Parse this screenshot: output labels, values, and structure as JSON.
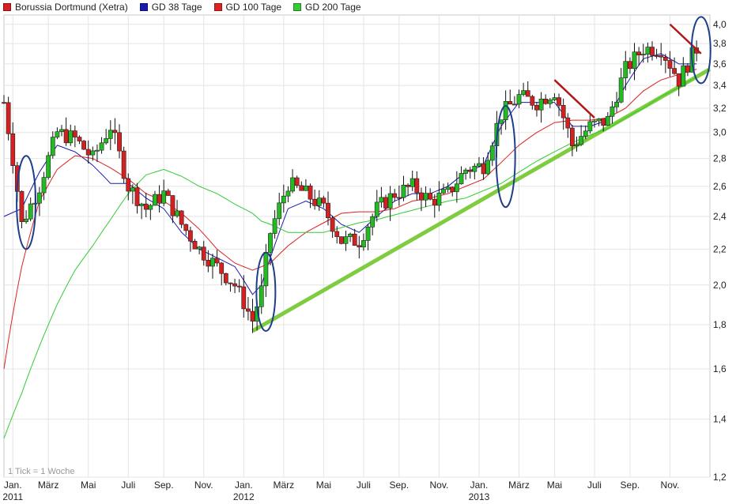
{
  "legend": {
    "stock": {
      "label": "Borussia Dortmund (Xetra)",
      "color": "#d42020"
    },
    "gd38": {
      "label": "GD 38 Tage",
      "color": "#1a1ab0"
    },
    "gd100": {
      "label": "GD 100 Tage",
      "color": "#dd2222"
    },
    "gd200": {
      "label": "GD 200 Tage",
      "color": "#33cc33"
    }
  },
  "footnote": "1 Tick = 1 Woche",
  "chart_data": {
    "type": "candlestick",
    "scale": "log",
    "ylim": [
      1.2,
      4.1
    ],
    "grid": true,
    "legend_position": "top-left",
    "y_ticks": [
      4.0,
      3.8,
      3.6,
      3.4,
      3.2,
      3.0,
      2.8,
      2.6,
      2.4,
      2.2,
      2.0,
      1.8,
      1.6,
      1.4,
      1.2
    ],
    "y_tick_labels": [
      "4,0",
      "3,8",
      "3,6",
      "3,4",
      "3,2",
      "3,0",
      "2,8",
      "2,6",
      "2,4",
      "2,2",
      "2,0",
      "1,8",
      "1,6",
      "1,4",
      "1,2"
    ],
    "x_ticks": [
      {
        "week": 2,
        "label": "Jan.",
        "year": "2011"
      },
      {
        "week": 10,
        "label": "März",
        "year": ""
      },
      {
        "week": 19,
        "label": "Mai",
        "year": ""
      },
      {
        "week": 28,
        "label": "Juli",
        "year": ""
      },
      {
        "week": 36,
        "label": "Sep.",
        "year": ""
      },
      {
        "week": 45,
        "label": "Nov.",
        "year": ""
      },
      {
        "week": 54,
        "label": "Jan.",
        "year": "2012"
      },
      {
        "week": 63,
        "label": "März",
        "year": ""
      },
      {
        "week": 72,
        "label": "Mai",
        "year": ""
      },
      {
        "week": 81,
        "label": "Juli",
        "year": ""
      },
      {
        "week": 89,
        "label": "Sep.",
        "year": ""
      },
      {
        "week": 98,
        "label": "Nov.",
        "year": ""
      },
      {
        "week": 107,
        "label": "Jan.",
        "year": "2013"
      },
      {
        "week": 116,
        "label": "März",
        "year": ""
      },
      {
        "week": 124,
        "label": "Mai",
        "year": ""
      },
      {
        "week": 133,
        "label": "Juli",
        "year": ""
      },
      {
        "week": 141,
        "label": "Sep.",
        "year": ""
      },
      {
        "week": 150,
        "label": "Nov.",
        "year": ""
      }
    ],
    "x_range": [
      0,
      159
    ],
    "series": [
      {
        "name": "Borussia Dortmund (Xetra)",
        "kind": "close",
        "color": "#d42020",
        "x": [
          0,
          4,
          8,
          12,
          16,
          20,
          24,
          28,
          32,
          36,
          40,
          44,
          48,
          52,
          56,
          58,
          60,
          64,
          68,
          72,
          76,
          80,
          84,
          88,
          92,
          96,
          100,
          104,
          108,
          112,
          116,
          120,
          124,
          128,
          132,
          136,
          140,
          144,
          148,
          152,
          156
        ],
        "y": [
          3.25,
          2.35,
          2.6,
          3.0,
          2.95,
          2.8,
          3.05,
          2.6,
          2.45,
          2.55,
          2.35,
          2.2,
          2.1,
          2.0,
          1.82,
          1.97,
          2.3,
          2.62,
          2.55,
          2.45,
          2.25,
          2.25,
          2.45,
          2.55,
          2.6,
          2.5,
          2.55,
          2.72,
          2.75,
          3.15,
          3.3,
          3.25,
          3.35,
          2.9,
          3.05,
          3.1,
          3.55,
          3.75,
          3.75,
          3.45,
          3.75
        ]
      },
      {
        "name": "GD 38 Tage",
        "kind": "line",
        "color": "#1a1ab0",
        "x": [
          0,
          4,
          8,
          12,
          16,
          20,
          24,
          28,
          32,
          36,
          40,
          44,
          48,
          52,
          56,
          58,
          60,
          64,
          68,
          72,
          76,
          80,
          84,
          88,
          92,
          96,
          100,
          104,
          108,
          112,
          116,
          120,
          124,
          128,
          132,
          136,
          140,
          144,
          148,
          152,
          156
        ],
        "y": [
          2.4,
          2.45,
          2.7,
          2.9,
          2.85,
          2.75,
          2.62,
          2.62,
          2.52,
          2.45,
          2.3,
          2.2,
          2.15,
          2.1,
          1.95,
          2.0,
          2.15,
          2.45,
          2.5,
          2.45,
          2.35,
          2.3,
          2.4,
          2.5,
          2.55,
          2.55,
          2.6,
          2.7,
          2.75,
          3.05,
          3.25,
          3.25,
          3.25,
          3.05,
          3.05,
          3.1,
          3.4,
          3.65,
          3.7,
          3.6,
          3.6
        ]
      },
      {
        "name": "GD 100 Tage",
        "kind": "line",
        "color": "#dd2222",
        "x": [
          0,
          4,
          8,
          12,
          16,
          20,
          24,
          28,
          32,
          36,
          40,
          44,
          48,
          52,
          56,
          58,
          60,
          64,
          68,
          72,
          76,
          80,
          84,
          88,
          92,
          96,
          100,
          104,
          108,
          112,
          116,
          120,
          124,
          128,
          132,
          136,
          140,
          144,
          148,
          152,
          156
        ],
        "y": [
          1.6,
          2.1,
          2.5,
          2.72,
          2.82,
          2.8,
          2.73,
          2.65,
          2.55,
          2.5,
          2.42,
          2.32,
          2.2,
          2.12,
          2.08,
          2.1,
          2.12,
          2.22,
          2.3,
          2.36,
          2.42,
          2.43,
          2.43,
          2.45,
          2.5,
          2.52,
          2.55,
          2.6,
          2.65,
          2.77,
          2.9,
          3.0,
          3.08,
          3.1,
          3.1,
          3.12,
          3.2,
          3.35,
          3.45,
          3.5,
          3.55
        ]
      },
      {
        "name": "GD 200 Tage",
        "kind": "line",
        "color": "#33cc33",
        "x": [
          0,
          4,
          8,
          12,
          16,
          20,
          24,
          28,
          32,
          36,
          40,
          44,
          48,
          52,
          56,
          58,
          60,
          64,
          68,
          72,
          76,
          80,
          84,
          88,
          92,
          96,
          100,
          104,
          108,
          112,
          116,
          120,
          124,
          128,
          132,
          136,
          140,
          144,
          148,
          152,
          156
        ],
        "y": [
          1.33,
          1.5,
          1.7,
          1.9,
          2.08,
          2.22,
          2.38,
          2.55,
          2.68,
          2.72,
          2.67,
          2.6,
          2.55,
          2.48,
          2.42,
          2.37,
          2.35,
          2.3,
          2.3,
          2.3,
          2.33,
          2.36,
          2.38,
          2.41,
          2.44,
          2.47,
          2.5,
          2.52,
          2.57,
          2.62,
          2.7,
          2.78,
          2.85,
          2.92,
          2.98,
          3.03,
          3.12,
          3.2,
          3.3,
          3.38,
          3.48
        ]
      }
    ],
    "annotations": {
      "trendline": {
        "color": "#80cc40",
        "from": {
          "week": 56,
          "value": 1.77
        },
        "to": {
          "week": 159,
          "value": 3.55
        }
      },
      "down_lines": [
        {
          "color": "#b01818",
          "from": {
            "week": 124,
            "value": 3.45
          },
          "to": {
            "week": 133,
            "value": 3.12
          }
        },
        {
          "color": "#b01818",
          "from": {
            "week": 150,
            "value": 4.0
          },
          "to": {
            "week": 157,
            "value": 3.7
          }
        }
      ],
      "ellipses": [
        {
          "color": "#1c3f8a",
          "week": 5,
          "value_top": 2.82,
          "value_bottom": 2.2
        },
        {
          "color": "#1c3f8a",
          "week": 59,
          "value_top": 2.18,
          "value_bottom": 1.77
        },
        {
          "color": "#1c3f8a",
          "week": 113,
          "value_top": 3.22,
          "value_bottom": 2.46
        },
        {
          "color": "#1c3f8a",
          "week": 157,
          "value_top": 4.08,
          "value_bottom": 3.42
        }
      ]
    }
  }
}
